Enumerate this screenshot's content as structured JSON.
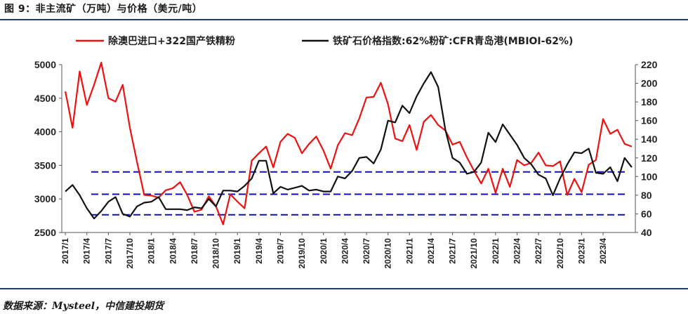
{
  "figure": {
    "title": "图 9：非主流矿（万吨）与价格（美元/吨）",
    "source": "数据来源：Mysteel，中信建投期货"
  },
  "chart_data": {
    "type": "line",
    "legend_placement": "top",
    "grid": false,
    "x_ticks": [
      "2017/1",
      "2017/4",
      "2017/7",
      "2017/10",
      "2018/1",
      "2018/4",
      "2018/7",
      "2018/10",
      "2019/1",
      "2019/4",
      "2019/7",
      "2019/10",
      "2020/1",
      "2020/4",
      "2020/7",
      "2020/10",
      "2021/1",
      "2021/4",
      "2021/7",
      "2021/10",
      "2022/1",
      "2022/4",
      "2022/7",
      "2022/10",
      "2023/1",
      "2023/4"
    ],
    "y_left": {
      "ylim": [
        2500,
        5000
      ],
      "ticks": [
        2500,
        3000,
        3500,
        4000,
        4500,
        5000
      ]
    },
    "y_right": {
      "ylim": [
        40,
        220
      ],
      "ticks": [
        40,
        60,
        80,
        100,
        120,
        140,
        160,
        180,
        200,
        220
      ]
    },
    "reference_lines": [
      {
        "axis": "right",
        "value": 105,
        "style": "dashed",
        "color": "#1010b4"
      },
      {
        "axis": "right",
        "value": 81,
        "style": "dashed",
        "color": "#1010b4"
      },
      {
        "axis": "right",
        "value": 59,
        "style": "dashed",
        "color": "#1010b4"
      }
    ],
    "series": [
      {
        "name": "除澳巴进口+322国产铁精粉",
        "axis": "left",
        "color": "#ee1111",
        "x": [
          0,
          1,
          2,
          3,
          4,
          5,
          6,
          7,
          8,
          9,
          10,
          11,
          12,
          13,
          14,
          15,
          16,
          17,
          18,
          19,
          20,
          21,
          22,
          23,
          24,
          25,
          26,
          27,
          28,
          29,
          30,
          31,
          32,
          33,
          34,
          35,
          36,
          37,
          38,
          39,
          40,
          41,
          42,
          43,
          44,
          45,
          46,
          47,
          48,
          49,
          50,
          51,
          52,
          53,
          54,
          55,
          56,
          57,
          58,
          59,
          60,
          61,
          62,
          63,
          64,
          65,
          66,
          67,
          68,
          69,
          70,
          71,
          72,
          73,
          74,
          75,
          76,
          77,
          78,
          79
        ],
        "values": [
          4600,
          4060,
          4900,
          4400,
          4700,
          5030,
          4500,
          4450,
          4700,
          4060,
          3550,
          3060,
          3050,
          3020,
          3130,
          3160,
          3250,
          3060,
          2810,
          2840,
          3040,
          2890,
          2620,
          3070,
          2960,
          2860,
          3570,
          3680,
          3780,
          3470,
          3850,
          3970,
          3910,
          3680,
          3820,
          3930,
          3720,
          3450,
          3800,
          3980,
          3950,
          4200,
          4510,
          4520,
          4730,
          4410,
          3900,
          3860,
          4100,
          3730,
          4150,
          4250,
          4100,
          4020,
          3810,
          3850,
          3620,
          3420,
          3230,
          3450,
          3090,
          3450,
          3180,
          3580,
          3500,
          3540,
          3690,
          3500,
          3490,
          3560,
          3060,
          3300,
          3100,
          3510,
          3580,
          4190,
          3970,
          4030,
          3820,
          3780
        ],
        "min_value": 2620
      },
      {
        "name": "铁矿石价格指数:62%粉矿:CFR青岛港(MBIOI-62%)",
        "axis": "right",
        "color": "#111111",
        "x": [
          0,
          1,
          2,
          3,
          4,
          5,
          6,
          7,
          8,
          9,
          10,
          11,
          12,
          13,
          14,
          15,
          16,
          17,
          18,
          19,
          20,
          21,
          22,
          23,
          24,
          25,
          26,
          27,
          28,
          29,
          30,
          31,
          32,
          33,
          34,
          35,
          36,
          37,
          38,
          39,
          40,
          41,
          42,
          43,
          44,
          45,
          46,
          47,
          48,
          49,
          50,
          51,
          52,
          53,
          54,
          55,
          56,
          57,
          58,
          59,
          60,
          61,
          62,
          63,
          64,
          65,
          66,
          67,
          68,
          69,
          70,
          71,
          72,
          73,
          74,
          75,
          76,
          77,
          78,
          79
        ],
        "values": [
          84,
          91,
          80,
          66,
          55,
          63,
          73,
          78,
          60,
          57,
          68,
          72,
          73,
          78,
          65,
          65,
          65,
          64,
          67,
          66,
          76,
          68,
          85,
          85,
          84,
          90,
          98,
          117,
          117,
          82,
          89,
          86,
          88,
          90,
          85,
          86,
          84,
          84,
          100,
          98,
          106,
          120,
          121,
          114,
          129,
          160,
          158,
          176,
          168,
          186,
          200,
          212,
          196,
          150,
          120,
          115,
          103,
          105,
          115,
          147,
          137,
          156,
          145,
          134,
          120,
          113,
          102,
          98,
          80,
          98,
          113,
          126,
          125,
          130,
          104,
          103,
          110,
          95,
          120,
          110
        ],
        "peak_value": 212
      }
    ]
  }
}
